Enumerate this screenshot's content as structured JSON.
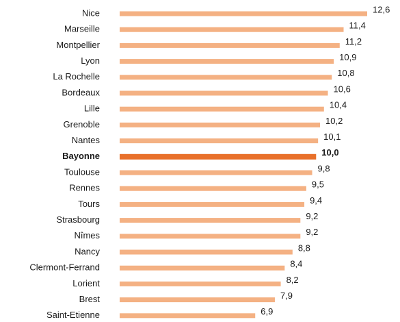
{
  "chart_data": {
    "type": "hbar",
    "categories": [
      "Nice",
      "Marseille",
      "Montpellier",
      "Lyon",
      "La Rochelle",
      "Bordeaux",
      "Lille",
      "Grenoble",
      "Nantes",
      "Bayonne",
      "Toulouse",
      "Rennes",
      "Tours",
      "Strasbourg",
      "Nîmes",
      "Nancy",
      "Clermont-Ferrand",
      "Lorient",
      "Brest",
      "Saint-Etienne"
    ],
    "values": [
      12.6,
      11.4,
      11.2,
      10.9,
      10.8,
      10.6,
      10.4,
      10.2,
      10.1,
      10.0,
      9.8,
      9.5,
      9.4,
      9.2,
      9.2,
      8.8,
      8.4,
      8.2,
      7.9,
      6.9
    ],
    "value_labels": [
      "12,6",
      "11,4",
      "11,2",
      "10,9",
      "10,8",
      "10,6",
      "10,4",
      "10,2",
      "10,1",
      "10,0",
      "9,8",
      "9,5",
      "9,4",
      "9,2",
      "9,2",
      "8,8",
      "8,4",
      "8,2",
      "7,9",
      "6,9"
    ],
    "color": "#f4b183",
    "highlight": "Bayonne",
    "highlight_color": "#e8702a",
    "xlim": [
      0,
      12.6
    ]
  }
}
